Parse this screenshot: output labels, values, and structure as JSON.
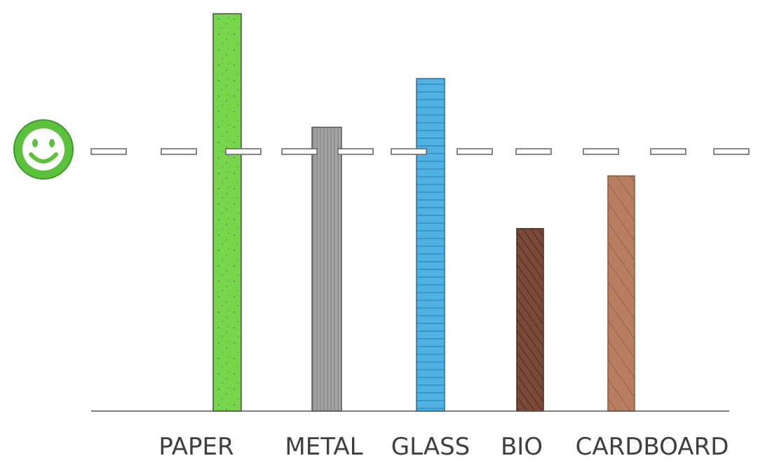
{
  "chart_data": {
    "type": "bar",
    "categories": [
      "PAPER",
      "METAL",
      "GLASS",
      "BIO",
      "CARDBOARD"
    ],
    "values": [
      98,
      70,
      82,
      45,
      58
    ],
    "ylim": [
      0,
      100
    ],
    "target": {
      "value": 64,
      "style": "dashed",
      "marker_icon": "smiley-face-icon",
      "marker_color": "#5cc13c"
    },
    "grid": false,
    "legend": "none",
    "bar_colors": [
      "#77d64a",
      "#a3a3a3",
      "#4fb2e3",
      "#7b4a38",
      "#b77f5f"
    ],
    "bar_textures": [
      "speckled",
      "vertical-lines",
      "horizontal-lines",
      "diagonal-hatch",
      "diagonal-hatch"
    ]
  }
}
